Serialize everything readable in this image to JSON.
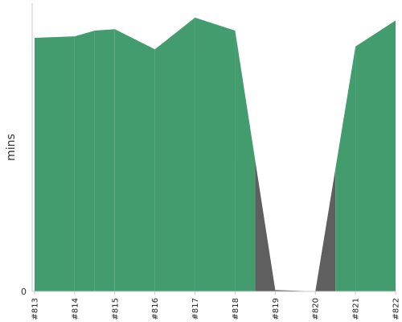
{
  "chart_data": {
    "type": "area",
    "categories": [
      "#813",
      "#814",
      "#815",
      "#816",
      "#817",
      "#818",
      "#819",
      "#820",
      "#821",
      "#822"
    ],
    "ylabel": "mins",
    "y_tick_labels": [
      "0"
    ],
    "ylim": [
      0,
      100
    ],
    "grid": false,
    "colors": {
      "pass": "#439C6E",
      "fail": "#5F5F5F"
    },
    "series": [
      {
        "values": [
          88,
          88.5,
          91,
          84,
          95,
          90.5,
          0.5,
          0,
          85,
          94
        ],
        "status": [
          "pass",
          "pass",
          "pass",
          "pass",
          "pass",
          "pass",
          "fail",
          "fail",
          "pass",
          "pass"
        ],
        "extra_points": [
          {
            "x": 1.5,
            "y": 90.5
          }
        ]
      }
    ]
  }
}
